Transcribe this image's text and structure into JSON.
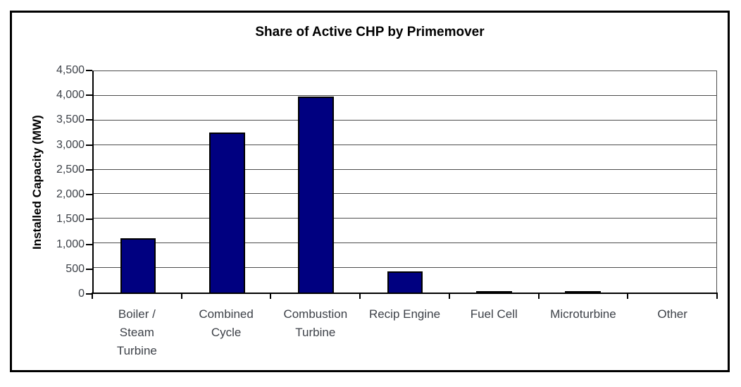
{
  "title": "Share of Active CHP by Primemover",
  "chart_data": {
    "type": "bar",
    "title": "Share of Active CHP by Primemover",
    "categories": [
      "Boiler / Steam Turbine",
      "Combined Cycle",
      "Combustion Turbine",
      "Recip Engine",
      "Fuel Cell",
      "Microturbine",
      "Other"
    ],
    "category_label_lines": [
      [
        "Boiler /",
        "Steam",
        "Turbine"
      ],
      [
        "Combined",
        "Cycle"
      ],
      [
        "Combustion",
        "Turbine"
      ],
      [
        "Recip Engine"
      ],
      [
        "Fuel Cell"
      ],
      [
        "Microturbine"
      ],
      [
        "Other"
      ]
    ],
    "values": [
      1100,
      3250,
      3990,
      430,
      30,
      35,
      0
    ],
    "xlabel": "",
    "ylabel": "Installed Capacity (MW)",
    "ylim": [
      0,
      4500
    ],
    "ytick_step": 500,
    "ytick_labels": [
      "0",
      "500",
      "1,000",
      "1,500",
      "2,000",
      "2,500",
      "3,000",
      "3,500",
      "4,000",
      "4,500"
    ],
    "grid": true,
    "legend": false,
    "colors": {
      "bar_fill": "#000080",
      "bar_border": "#000000",
      "gridline": "#4d4d4d",
      "axis": "#000000",
      "tick_label": "#3d4148",
      "title_text": "#000000",
      "frame_border": "#000000",
      "background": "#ffffff"
    }
  }
}
